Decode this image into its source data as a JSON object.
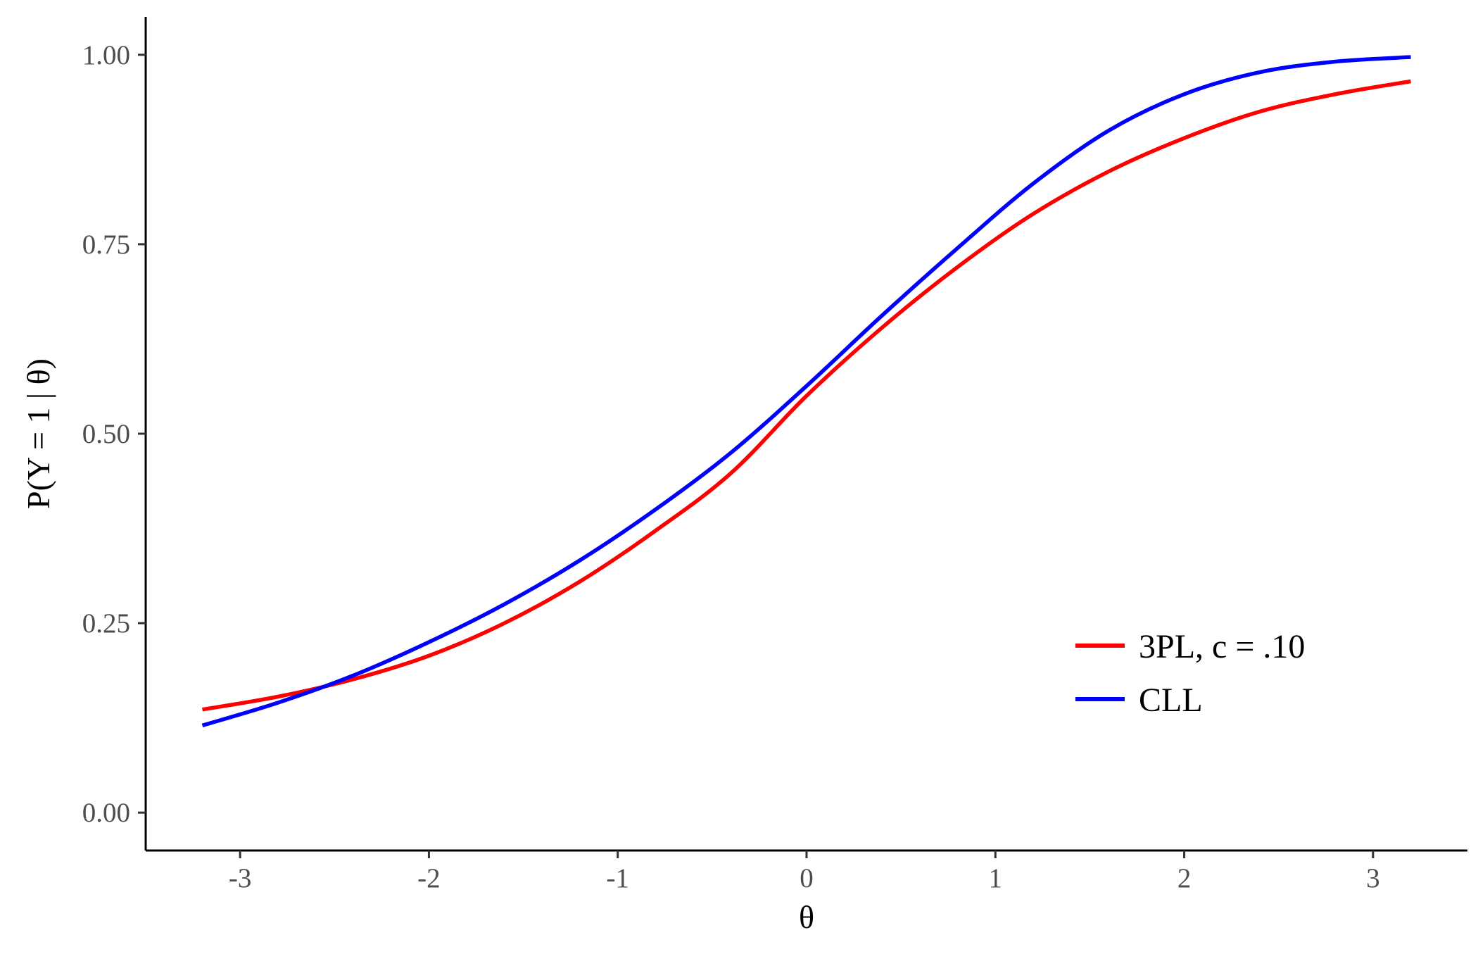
{
  "chart_data": {
    "type": "line",
    "title": "",
    "xlabel": "θ",
    "ylabel": "P(Y = 1 | θ)",
    "xlim": [
      -3.5,
      3.5
    ],
    "ylim": [
      -0.05,
      1.05
    ],
    "x_ticks": [
      -3,
      -2,
      -1,
      0,
      1,
      2,
      3
    ],
    "x_tick_labels": [
      "-3",
      "-2",
      "-1",
      "0",
      "1",
      "2",
      "3"
    ],
    "y_ticks": [
      0,
      0.25,
      0.5,
      0.75,
      1
    ],
    "y_tick_labels": [
      "0.00",
      "0.25",
      "0.50",
      "0.75",
      "1.00"
    ],
    "grid": false,
    "legend_position": "bottom-right",
    "series": [
      {
        "name": "3PL, c = .10",
        "color": "#ff0000",
        "x": [
          -3.2,
          -2.8,
          -2.4,
          -2.0,
          -1.6,
          -1.2,
          -0.8,
          -0.4,
          0.0,
          0.4,
          0.8,
          1.2,
          1.6,
          2.0,
          2.4,
          2.8,
          3.2
        ],
        "y": [
          0.136,
          0.153,
          0.176,
          0.207,
          0.25,
          0.305,
          0.372,
          0.448,
          0.55,
          0.64,
          0.72,
          0.79,
          0.846,
          0.89,
          0.925,
          0.948,
          0.965
        ]
      },
      {
        "name": "CLL",
        "color": "#0000ff",
        "x": [
          -3.2,
          -2.8,
          -2.4,
          -2.0,
          -1.6,
          -1.2,
          -0.8,
          -0.4,
          0.0,
          0.4,
          0.8,
          1.2,
          1.6,
          2.0,
          2.4,
          2.8,
          3.2
        ],
        "y": [
          0.115,
          0.145,
          0.181,
          0.225,
          0.275,
          0.333,
          0.4,
          0.475,
          0.563,
          0.656,
          0.745,
          0.83,
          0.9,
          0.948,
          0.977,
          0.991,
          0.997
        ]
      }
    ]
  }
}
